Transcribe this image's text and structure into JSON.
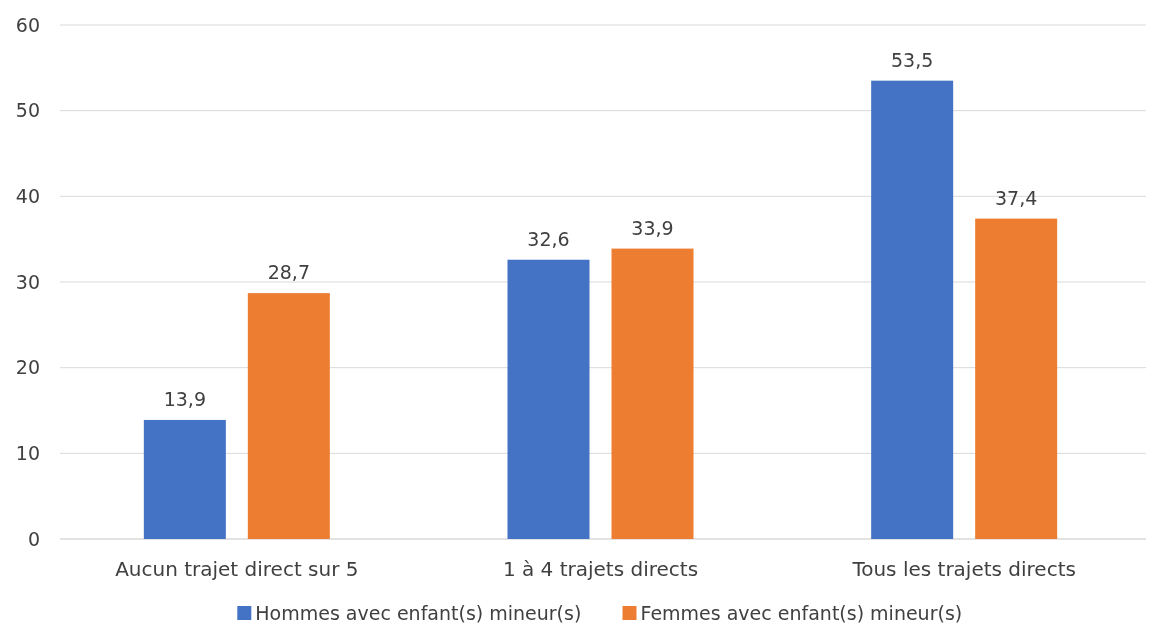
{
  "chart_data": {
    "type": "bar",
    "categories": [
      "Aucun trajet direct sur 5",
      "1 à 4 trajets directs",
      "Tous les trajets directs"
    ],
    "series": [
      {
        "name": "Hommes avec enfant(s) mineur(s)",
        "color": "#4472c4",
        "values": [
          13.9,
          32.6,
          53.5
        ],
        "value_labels": [
          "13,9",
          "32,6",
          "53,5"
        ]
      },
      {
        "name": "Femmes avec enfant(s) mineur(s)",
        "color": "#ed7d31",
        "values": [
          28.7,
          33.9,
          37.4
        ],
        "value_labels": [
          "28,7",
          "33,9",
          "37,4"
        ]
      }
    ],
    "ylim": [
      0,
      60
    ],
    "yticks": [
      0,
      10,
      20,
      30,
      40,
      50,
      60
    ],
    "grid": "y",
    "legend": "bottom"
  }
}
